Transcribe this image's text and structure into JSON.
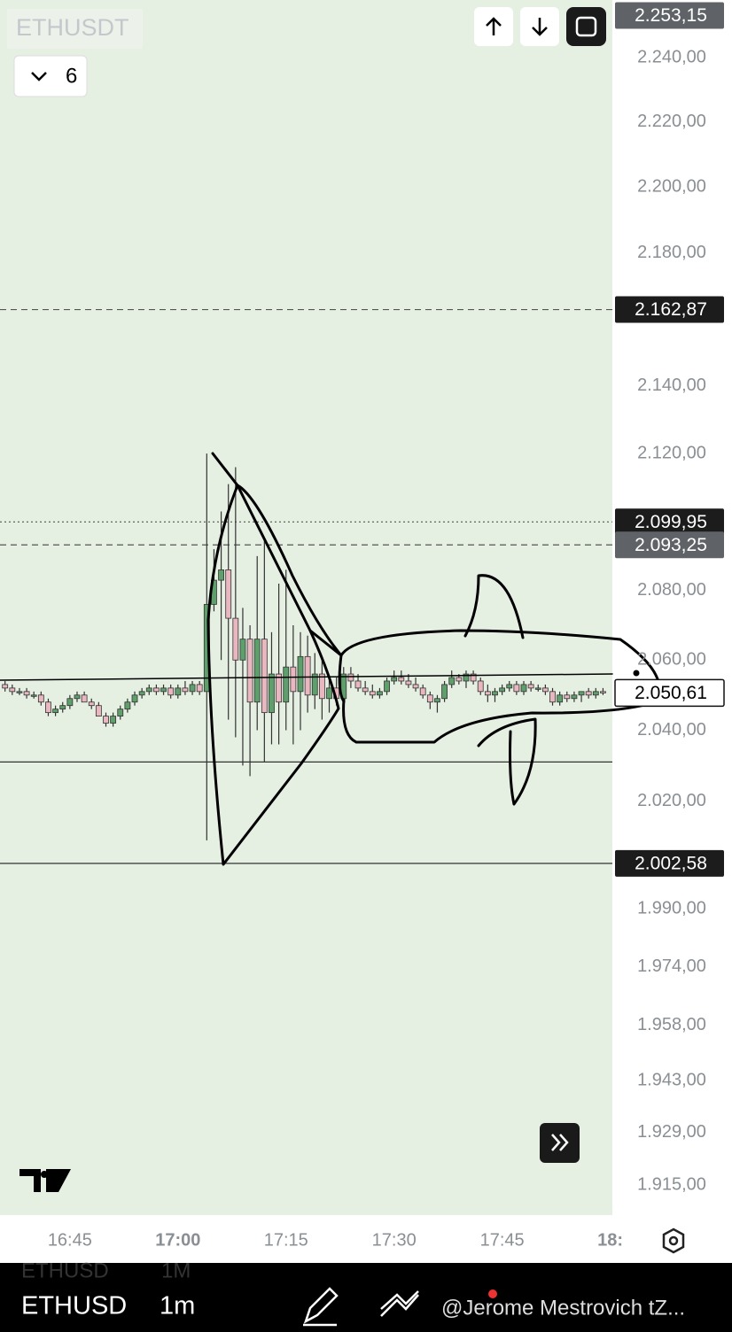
{
  "ui": {
    "symbol_label": "ETHUSDT",
    "interval_count": "6",
    "toolbar_symbol": "ETHUSD",
    "toolbar_interval": "1m",
    "ghost_symbol": "ETHUSD",
    "ghost_interval": "1M",
    "watermark": "@Jerome Mestrovich tZ..."
  },
  "chart_data": {
    "type": "candlestick",
    "log_scale": true,
    "up_color": "#5e9f6b",
    "down_color": "#e9b7bf",
    "ylim": [
      1907,
      2258
    ],
    "yticks": [
      {
        "value": 2240,
        "label": "2.240,00"
      },
      {
        "value": 2220,
        "label": "2.220,00"
      },
      {
        "value": 2200,
        "label": "2.200,00"
      },
      {
        "value": 2180,
        "label": "2.180,00"
      },
      {
        "value": 2140,
        "label": "2.140,00"
      },
      {
        "value": 2120,
        "label": "2.120,00"
      },
      {
        "value": 2080,
        "label": "2.080,00"
      },
      {
        "value": 2060,
        "label": "2.060,00"
      },
      {
        "value": 2040,
        "label": "2.040,00"
      },
      {
        "value": 2020,
        "label": "2.020,00"
      },
      {
        "value": 1990,
        "label": "1.990,00"
      },
      {
        "value": 1974,
        "label": "1.974,00"
      },
      {
        "value": 1958,
        "label": "1.958,00"
      },
      {
        "value": 1943,
        "label": "1.943,00"
      },
      {
        "value": 1929,
        "label": "1.929,00"
      },
      {
        "value": 1915,
        "label": "1.915,00"
      }
    ],
    "xlim": [
      -9.7,
      75.3
    ],
    "xticks": [
      {
        "value": 0,
        "label": "16:45"
      },
      {
        "value": 15,
        "label": "17:00",
        "major": true
      },
      {
        "value": 30,
        "label": "17:15"
      },
      {
        "value": 45,
        "label": "17:30"
      },
      {
        "value": 60,
        "label": "17:45"
      },
      {
        "value": 75,
        "label": "18:",
        "major": true
      }
    ],
    "price_lines": [
      {
        "value": 2253.15,
        "label": "2.253,15",
        "style": "none",
        "tag": "gray"
      },
      {
        "value": 2162.87,
        "label": "2.162,87",
        "style": "dashed",
        "tag": "dark"
      },
      {
        "value": 2099.95,
        "label": "2.099,95",
        "style": "dotted",
        "tag": "dark"
      },
      {
        "value": 2093.25,
        "label": "2.093,25",
        "style": "dashed",
        "tag": "gray"
      },
      {
        "value": 2050.61,
        "label": "2.050,61",
        "style": "none",
        "tag": "light"
      },
      {
        "value": 2031,
        "style": "solid"
      },
      {
        "value": 2002.58,
        "label": "2.002,58",
        "style": "solid",
        "tag": "dark"
      }
    ],
    "x": [
      -9,
      -8,
      -7,
      -6,
      -5,
      -4,
      -3,
      -2,
      -1,
      0,
      1,
      2,
      3,
      4,
      5,
      6,
      7,
      8,
      9,
      10,
      11,
      12,
      13,
      14,
      15,
      16,
      17,
      18,
      19,
      20,
      21,
      22,
      23,
      24,
      25,
      26,
      27,
      28,
      29,
      30,
      31,
      32,
      33,
      34,
      35,
      36,
      37,
      38,
      39,
      40,
      41,
      42,
      43,
      44,
      45,
      46,
      47,
      48,
      49,
      50,
      51,
      52,
      53,
      54,
      55,
      56,
      57,
      58,
      59,
      60,
      61,
      62,
      63,
      64,
      65,
      66,
      67,
      68,
      69,
      70,
      71,
      72,
      73,
      74
    ],
    "candles": [
      [
        2053,
        2054,
        2051,
        2052
      ],
      [
        2052,
        2053,
        2050,
        2051
      ],
      [
        2051,
        2052,
        2050,
        2051
      ],
      [
        2051,
        2052,
        2049,
        2050
      ],
      [
        2050,
        2051,
        2049,
        2050
      ],
      [
        2050,
        2051,
        2047,
        2048
      ],
      [
        2048,
        2049,
        2044,
        2045
      ],
      [
        2045,
        2047,
        2044,
        2046
      ],
      [
        2046,
        2048,
        2045,
        2047
      ],
      [
        2047,
        2050,
        2046,
        2049
      ],
      [
        2049,
        2051,
        2048,
        2050
      ],
      [
        2050,
        2051,
        2048,
        2048
      ],
      [
        2048,
        2049,
        2046,
        2047
      ],
      [
        2047,
        2048,
        2044,
        2044
      ],
      [
        2044,
        2045,
        2041,
        2042
      ],
      [
        2042,
        2045,
        2041,
        2044
      ],
      [
        2044,
        2047,
        2043,
        2046
      ],
      [
        2046,
        2049,
        2045,
        2048
      ],
      [
        2048,
        2051,
        2047,
        2050
      ],
      [
        2050,
        2052,
        2049,
        2051
      ],
      [
        2051,
        2053,
        2050,
        2052
      ],
      [
        2052,
        2053,
        2050,
        2051
      ],
      [
        2051,
        2053,
        2050,
        2052
      ],
      [
        2052,
        2053,
        2049,
        2050
      ],
      [
        2050,
        2053,
        2049,
        2052
      ],
      [
        2052,
        2054,
        2050,
        2051
      ],
      [
        2051,
        2054,
        2050,
        2053
      ],
      [
        2053,
        2054,
        2050,
        2051
      ],
      [
        2051,
        2120,
        2009,
        2076
      ],
      [
        2076,
        2092,
        2074,
        2083
      ],
      [
        2083,
        2103,
        2060,
        2086
      ],
      [
        2086,
        2111,
        2043,
        2072
      ],
      [
        2072,
        2116,
        2038,
        2060
      ],
      [
        2060,
        2075,
        2030,
        2066
      ],
      [
        2066,
        2070,
        2027,
        2048
      ],
      [
        2048,
        2090,
        2040,
        2066
      ],
      [
        2066,
        2095,
        2031,
        2045
      ],
      [
        2045,
        2068,
        2036,
        2056
      ],
      [
        2056,
        2082,
        2036,
        2048
      ],
      [
        2048,
        2086,
        2040,
        2058
      ],
      [
        2058,
        2070,
        2036,
        2051
      ],
      [
        2051,
        2068,
        2040,
        2061
      ],
      [
        2061,
        2067,
        2045,
        2050
      ],
      [
        2050,
        2062,
        2046,
        2056
      ],
      [
        2056,
        2060,
        2043,
        2049
      ],
      [
        2049,
        2055,
        2045,
        2052
      ],
      [
        2052,
        2055,
        2047,
        2049
      ],
      [
        2049,
        2058,
        2047,
        2056
      ],
      [
        2056,
        2058,
        2052,
        2054
      ],
      [
        2054,
        2056,
        2051,
        2052
      ],
      [
        2052,
        2054,
        2050,
        2051
      ],
      [
        2051,
        2053,
        2049,
        2050
      ],
      [
        2050,
        2052,
        2049,
        2051
      ],
      [
        2051,
        2055,
        2050,
        2054
      ],
      [
        2054,
        2057,
        2053,
        2055
      ],
      [
        2055,
        2057,
        2053,
        2054
      ],
      [
        2054,
        2056,
        2052,
        2053
      ],
      [
        2053,
        2055,
        2051,
        2052
      ],
      [
        2052,
        2053,
        2049,
        2050
      ],
      [
        2050,
        2051,
        2046,
        2048
      ],
      [
        2048,
        2050,
        2045,
        2049
      ],
      [
        2049,
        2054,
        2048,
        2053
      ],
      [
        2053,
        2057,
        2052,
        2055
      ],
      [
        2055,
        2056,
        2053,
        2054
      ],
      [
        2054,
        2057,
        2052,
        2056
      ],
      [
        2056,
        2057,
        2053,
        2054
      ],
      [
        2054,
        2055,
        2050,
        2051
      ],
      [
        2051,
        2053,
        2048,
        2050
      ],
      [
        2050,
        2052,
        2048,
        2051
      ],
      [
        2051,
        2053,
        2050,
        2052
      ],
      [
        2052,
        2054,
        2051,
        2053
      ],
      [
        2053,
        2054,
        2050,
        2051
      ],
      [
        2051,
        2054,
        2050,
        2053
      ],
      [
        2053,
        2054,
        2051,
        2052
      ],
      [
        2052,
        2053,
        2051,
        2052
      ],
      [
        2052,
        2053,
        2050,
        2051
      ],
      [
        2051,
        2052,
        2047,
        2048
      ],
      [
        2048,
        2051,
        2047,
        2050
      ],
      [
        2050,
        2051,
        2048,
        2049
      ],
      [
        2049,
        2051,
        2048,
        2050
      ],
      [
        2050,
        2051,
        2048,
        2051
      ],
      [
        2051,
        2052,
        2049,
        2050
      ],
      [
        2050,
        2052,
        2049,
        2051
      ],
      [
        2051,
        2052,
        2050,
        2050.61
      ]
    ]
  }
}
